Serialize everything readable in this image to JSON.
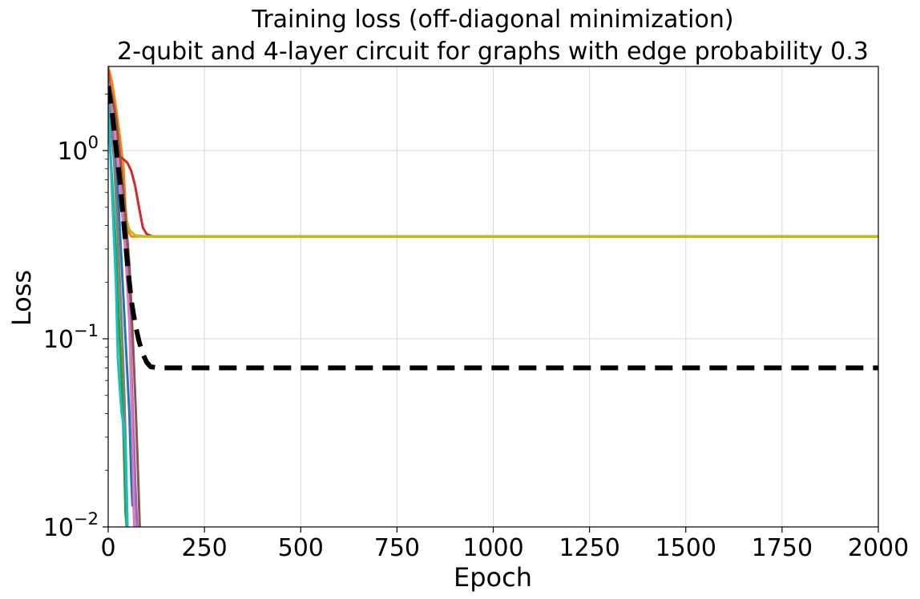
{
  "chart_data": {
    "type": "line",
    "title": "Training loss (off-diagonal minimization)",
    "subtitle": "2-qubit and 4-layer circuit for graphs with edge probability 0.3",
    "xlabel": "Epoch",
    "ylabel": "Loss",
    "xlim": [
      0,
      2000
    ],
    "ylim": [
      0.01,
      2.8
    ],
    "yscale": "log",
    "grid": true,
    "x_ticks": [
      0,
      250,
      500,
      750,
      1000,
      1250,
      1500,
      1750,
      2000
    ],
    "x_tick_labels": [
      "0",
      "250",
      "500",
      "750",
      "1000",
      "1250",
      "1500",
      "1750",
      "2000"
    ],
    "y_ticks": [
      {
        "value": 0.01,
        "base": "10",
        "exp": "−2"
      },
      {
        "value": 0.1,
        "base": "10",
        "exp": "−1"
      },
      {
        "value": 1,
        "base": "10",
        "exp": "0"
      }
    ],
    "series": [
      {
        "color": "#ff7f0e",
        "width": 3,
        "points": [
          [
            0,
            2.8
          ],
          [
            10,
            2.3
          ],
          [
            20,
            1.7
          ],
          [
            30,
            1.2
          ],
          [
            40,
            0.8
          ],
          [
            45,
            0.5
          ],
          [
            50,
            0.38
          ],
          [
            60,
            0.35
          ],
          [
            2000,
            0.35
          ]
        ]
      },
      {
        "color": "#d62728",
        "width": 3,
        "points": [
          [
            0,
            2.7
          ],
          [
            10,
            1.6
          ],
          [
            20,
            1.1
          ],
          [
            30,
            0.93
          ],
          [
            40,
            0.9
          ],
          [
            50,
            0.86
          ],
          [
            60,
            0.78
          ],
          [
            70,
            0.65
          ],
          [
            80,
            0.5
          ],
          [
            90,
            0.39
          ],
          [
            100,
            0.36
          ],
          [
            115,
            0.35
          ],
          [
            2000,
            0.35
          ]
        ]
      },
      {
        "color": "#bcbd22",
        "width": 3,
        "points": [
          [
            0,
            2.5
          ],
          [
            10,
            1.8
          ],
          [
            20,
            1.3
          ],
          [
            30,
            0.95
          ],
          [
            40,
            0.6
          ],
          [
            45,
            0.45
          ],
          [
            55,
            0.38
          ],
          [
            70,
            0.355
          ],
          [
            100,
            0.35
          ],
          [
            2000,
            0.35
          ]
        ]
      },
      {
        "color": "#1f77b4",
        "width": 3,
        "points": [
          [
            0,
            2.2
          ],
          [
            15,
            1.2
          ],
          [
            25,
            0.6
          ],
          [
            35,
            0.25
          ],
          [
            45,
            0.1
          ],
          [
            55,
            0.04
          ],
          [
            60,
            0.018
          ],
          [
            63,
            0.013
          ],
          [
            65,
            0.015
          ],
          [
            68,
            0.01
          ]
        ]
      },
      {
        "color": "#2ca02c",
        "width": 3,
        "points": [
          [
            0,
            1.6
          ],
          [
            10,
            0.7
          ],
          [
            20,
            0.3
          ],
          [
            25,
            0.17
          ],
          [
            30,
            0.1
          ],
          [
            35,
            0.06
          ],
          [
            40,
            0.03
          ],
          [
            45,
            0.012
          ],
          [
            48,
            0.01
          ]
        ]
      },
      {
        "color": "#9467bd",
        "width": 3,
        "points": [
          [
            0,
            2.4
          ],
          [
            15,
            1.3
          ],
          [
            30,
            0.7
          ],
          [
            40,
            0.42
          ],
          [
            50,
            0.28
          ],
          [
            55,
            0.15
          ],
          [
            60,
            0.07
          ],
          [
            65,
            0.035
          ],
          [
            70,
            0.018
          ],
          [
            75,
            0.01
          ]
        ]
      },
      {
        "color": "#8c564b",
        "width": 3,
        "points": [
          [
            0,
            2.5
          ],
          [
            20,
            1.5
          ],
          [
            40,
            0.6
          ],
          [
            55,
            0.25
          ],
          [
            65,
            0.09
          ],
          [
            72,
            0.04
          ],
          [
            78,
            0.018
          ],
          [
            82,
            0.01
          ]
        ]
      },
      {
        "color": "#e377c2",
        "width": 3,
        "points": [
          [
            0,
            2.3
          ],
          [
            20,
            1.1
          ],
          [
            35,
            0.5
          ],
          [
            45,
            0.28
          ],
          [
            55,
            0.12
          ],
          [
            60,
            0.05
          ],
          [
            65,
            0.02
          ],
          [
            68,
            0.01
          ]
        ]
      },
      {
        "color": "#7f7f7f",
        "width": 3,
        "points": [
          [
            0,
            2.1
          ],
          [
            15,
            0.9
          ],
          [
            25,
            0.35
          ],
          [
            35,
            0.12
          ],
          [
            42,
            0.05
          ],
          [
            47,
            0.02
          ],
          [
            50,
            0.01
          ]
        ]
      },
      {
        "color": "#17becf",
        "width": 3,
        "points": [
          [
            0,
            1.9
          ],
          [
            10,
            0.6
          ],
          [
            20,
            0.2
          ],
          [
            25,
            0.08
          ],
          [
            30,
            0.055
          ],
          [
            35,
            0.04
          ],
          [
            40,
            0.035
          ],
          [
            45,
            0.025
          ],
          [
            48,
            0.015
          ],
          [
            50,
            0.01
          ]
        ]
      },
      {
        "color": "#000000",
        "width": 6,
        "dash": "22 12",
        "points": [
          [
            0,
            2.2
          ],
          [
            10,
            1.6
          ],
          [
            20,
            1.05
          ],
          [
            30,
            0.7
          ],
          [
            40,
            0.42
          ],
          [
            50,
            0.25
          ],
          [
            60,
            0.16
          ],
          [
            70,
            0.12
          ],
          [
            80,
            0.097
          ],
          [
            90,
            0.083
          ],
          [
            100,
            0.075
          ],
          [
            110,
            0.071
          ],
          [
            130,
            0.07
          ],
          [
            2000,
            0.07
          ]
        ]
      }
    ]
  }
}
